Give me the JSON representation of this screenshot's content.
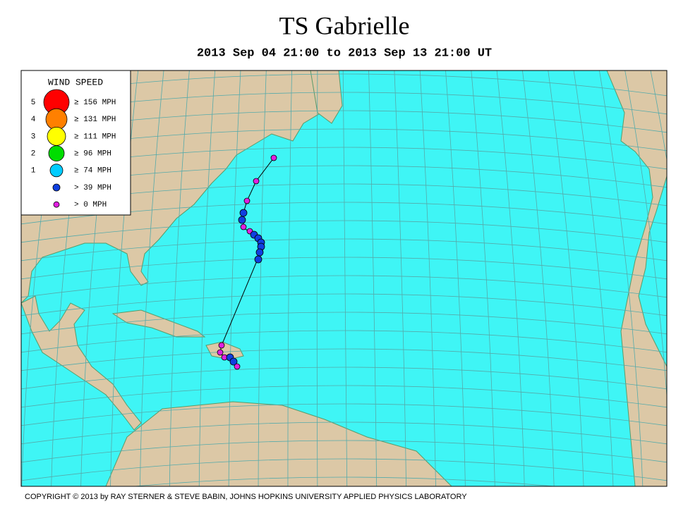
{
  "header": {
    "title": "TS Gabrielle",
    "subtitle": "2013 Sep 04 21:00 to 2013 Sep 13 21:00 UT"
  },
  "legend": {
    "title": "WIND SPEED",
    "items": [
      {
        "category": "5",
        "label": "≥ 156 MPH",
        "color": "#ff0000"
      },
      {
        "category": "4",
        "label": "≥ 131 MPH",
        "color": "#ff8000"
      },
      {
        "category": "3",
        "label": "≥ 111 MPH",
        "color": "#ffff00"
      },
      {
        "category": "2",
        "label": "≥ 96 MPH",
        "color": "#00dd00"
      },
      {
        "category": "1",
        "label": "≥ 74 MPH",
        "color": "#00ccff"
      },
      {
        "label": "> 39 MPH",
        "color": "#1040e0"
      },
      {
        "label": "> 0 MPH",
        "color": "#e020e0"
      }
    ]
  },
  "footer": {
    "copyright": "COPYRIGHT © 2013 by RAY STERNER & STEVE BABIN, JOHNS HOPKINS UNIVERSITY APPLIED PHYSICS LABORATORY"
  }
}
